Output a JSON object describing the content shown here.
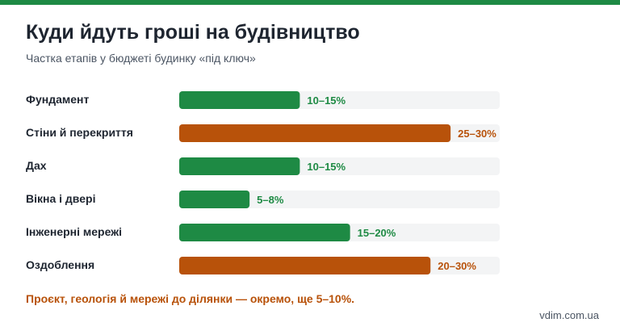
{
  "title": "Куди йдуть гроші на будівництво",
  "subtitle": "Частка етапів у бюджеті будинку «під ключ»",
  "note": "Проєкт, геологія й мережі до ділянки — окремо, ще 5–10%.",
  "source": "vdim.com.ua",
  "colors": {
    "top_bar": "#1e8a44",
    "green": "#1e8a44",
    "orange": "#b8520a",
    "track": "#f3f4f5",
    "note": "#b8520a"
  },
  "chart_data": {
    "type": "bar",
    "orientation": "horizontal",
    "unit": "%",
    "xlim": [
      0,
      30
    ],
    "grid": false,
    "legend": "none",
    "categories": [
      "Фундамент",
      "Стіни й перекриття",
      "Дах",
      "Вікна і двері",
      "Інженерні мережі",
      "Оздоблення"
    ],
    "ranges": [
      [
        10,
        15
      ],
      [
        25,
        30
      ],
      [
        10,
        15
      ],
      [
        5,
        8
      ],
      [
        15,
        20
      ],
      [
        20,
        30
      ]
    ],
    "values": [
      12,
      27,
      12,
      7,
      17,
      25
    ],
    "value_labels": [
      "10–15%",
      "25–30%",
      "10–15%",
      "5–8%",
      "15–20%",
      "20–30%"
    ],
    "bar_colors": [
      "green",
      "orange",
      "green",
      "green",
      "green",
      "orange"
    ]
  }
}
